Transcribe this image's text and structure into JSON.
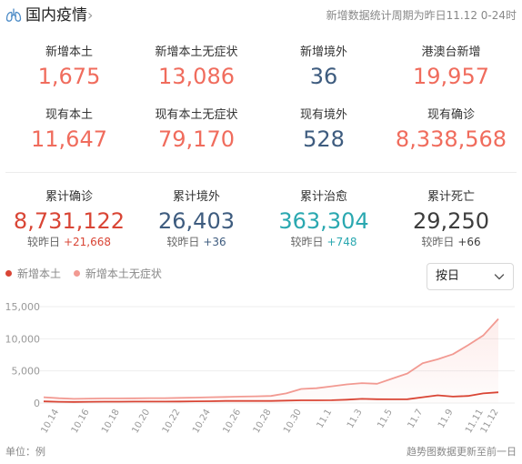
{
  "header": {
    "title": "国内疫情",
    "note": "新增数据统计周期为昨日11.12 0-24时"
  },
  "colors": {
    "red": "#f06c5d",
    "dark_red": "#d94535",
    "navy": "#3e5c7f",
    "teal": "#2aa8b0",
    "gray_dark": "#3d3d3d",
    "line_pink": "#f29a92"
  },
  "stats_row1": [
    {
      "label": "新增本土",
      "value": "1,675"
    },
    {
      "label": "新增本土无症状",
      "value": "13,086"
    },
    {
      "label": "新增境外",
      "value": "36"
    },
    {
      "label": "港澳台新增",
      "value": "19,957"
    }
  ],
  "stats_row2": [
    {
      "label": "现有本土",
      "value": "11,647"
    },
    {
      "label": "现有本土无症状",
      "value": "79,170"
    },
    {
      "label": "现有境外",
      "value": "528"
    },
    {
      "label": "现有确诊",
      "value": "8,338,568"
    }
  ],
  "stats_row3": [
    {
      "label": "累计确诊",
      "value": "8,731,122",
      "delta_label": "较昨日",
      "delta": "+21,668"
    },
    {
      "label": "累计境外",
      "value": "26,403",
      "delta_label": "较昨日",
      "delta": "+36"
    },
    {
      "label": "累计治愈",
      "value": "363,304",
      "delta_label": "较昨日",
      "delta": "+748"
    },
    {
      "label": "累计死亡",
      "value": "29,250",
      "delta_label": "较昨日",
      "delta": "+66"
    }
  ],
  "legend": [
    {
      "name": "新增本土"
    },
    {
      "name": "新增本土无症状"
    }
  ],
  "select": {
    "value": "按日"
  },
  "footer": {
    "unit": "单位：例",
    "note": "趋势图数据更新至前一日"
  },
  "chart_data": {
    "type": "line",
    "x": [
      "10.13",
      "10.14",
      "10.15",
      "10.16",
      "10.17",
      "10.18",
      "10.19",
      "10.20",
      "10.21",
      "10.22",
      "10.23",
      "10.24",
      "10.25",
      "10.26",
      "10.27",
      "10.28",
      "10.29",
      "10.30",
      "10.31",
      "11.1",
      "11.2",
      "11.3",
      "11.4",
      "11.5",
      "11.6",
      "11.7",
      "11.8",
      "11.9",
      "11.10",
      "11.11",
      "11.12"
    ],
    "x_tick_labels": [
      "10.14",
      "10.16",
      "10.18",
      "10.20",
      "10.22",
      "10.24",
      "10.26",
      "10.28",
      "10.30",
      "11.1",
      "11.3",
      "11.5",
      "11.7",
      "11.9",
      "11.11",
      "11.12"
    ],
    "series": [
      {
        "name": "新增本土",
        "values": [
          250,
          200,
          170,
          200,
          210,
          210,
          220,
          230,
          230,
          240,
          270,
          280,
          320,
          330,
          330,
          320,
          380,
          420,
          430,
          440,
          520,
          650,
          600,
          580,
          600,
          900,
          1200,
          1000,
          1100,
          1500,
          1675
        ]
      },
      {
        "name": "新增本土无症状",
        "values": [
          900,
          750,
          650,
          700,
          720,
          720,
          740,
          760,
          760,
          800,
          850,
          900,
          950,
          1000,
          1050,
          1100,
          1500,
          2200,
          2300,
          2600,
          2900,
          3100,
          3000,
          3800,
          4600,
          6200,
          6800,
          7600,
          9000,
          10500,
          13086
        ]
      }
    ],
    "yticks": [
      "0",
      "5,000",
      "10,000",
      "15,000"
    ],
    "ylim": [
      0,
      15000
    ],
    "grid": true
  }
}
